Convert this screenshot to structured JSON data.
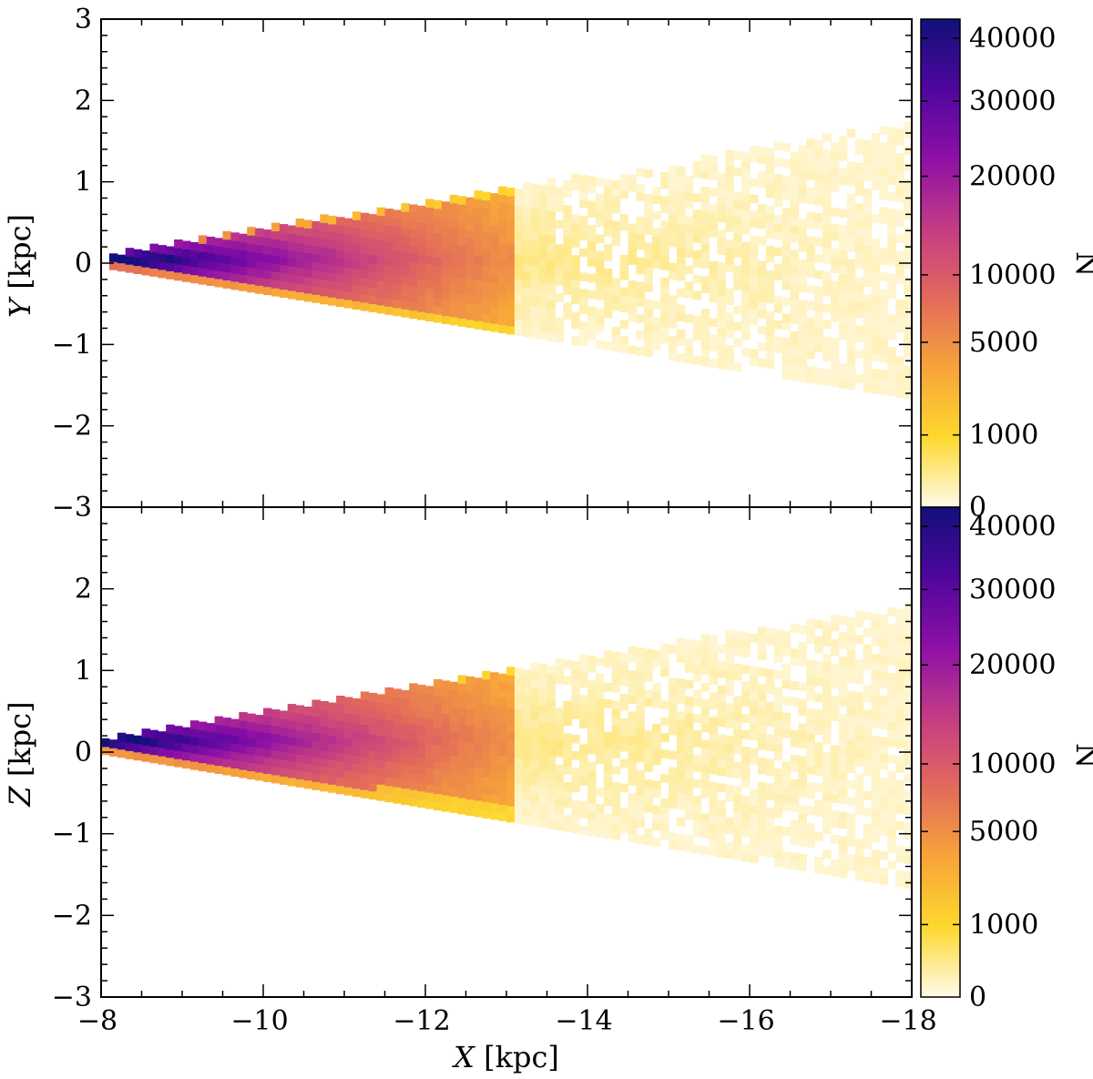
{
  "chart_data": [
    {
      "type": "heatmap",
      "panel": "top",
      "xlabel": "",
      "ylabel_var": "Y",
      "ylabel_unit": "[kpc]",
      "xlim": [
        -8,
        -18
      ],
      "ylim": [
        -3,
        3
      ],
      "yticks": [
        3,
        2,
        1,
        0,
        -1,
        -2,
        -3
      ],
      "yticklabels": [
        "3",
        "2",
        "1",
        "0",
        "−1",
        "−2",
        "−3"
      ],
      "description_shape": "wedge",
      "wedge": {
        "apex_x": -8.1,
        "end_x": -18,
        "center_y": 0.0,
        "halfwidth_at_end": 1.6
      },
      "colorbar": {
        "label": "N",
        "ticks": [
          0,
          1000,
          5000,
          10000,
          20000,
          30000,
          40000
        ],
        "ticklabels": [
          "0",
          "1000",
          "5000",
          "10000",
          "20000",
          "30000",
          "40000"
        ],
        "range": [
          0,
          43000
        ]
      }
    },
    {
      "type": "heatmap",
      "panel": "bottom",
      "xlabel_var": "X",
      "xlabel_unit": "[kpc]",
      "ylabel_var": "Z",
      "ylabel_unit": "[kpc]",
      "xlim": [
        -8,
        -18
      ],
      "ylim": [
        -3,
        3
      ],
      "xticks": [
        -8,
        -10,
        -12,
        -14,
        -16,
        -18
      ],
      "xticklabels": [
        "−8",
        "−10",
        "−12",
        "−14",
        "−16",
        "−18"
      ],
      "yticks": [
        2,
        1,
        0,
        -1,
        -2,
        -3
      ],
      "yticklabels": [
        "2",
        "1",
        "0",
        "−1",
        "−2",
        "−3"
      ],
      "wedge": {
        "apex_x": -8.0,
        "end_x": -18,
        "center_y": 0.05,
        "halfwidth_at_end": 1.65
      },
      "colorbar": {
        "label": "N",
        "ticks": [
          0,
          1000,
          5000,
          10000,
          20000,
          30000,
          40000
        ],
        "ticklabels": [
          "0",
          "1000",
          "5000",
          "10000",
          "20000",
          "30000",
          "40000"
        ],
        "range": [
          0,
          43000
        ]
      }
    }
  ],
  "colormap": [
    "#fffaea",
    "#fdd82e",
    "#f7a43a",
    "#e26a5c",
    "#c33c85",
    "#8e10a6",
    "#4f069d",
    "#12107a"
  ]
}
